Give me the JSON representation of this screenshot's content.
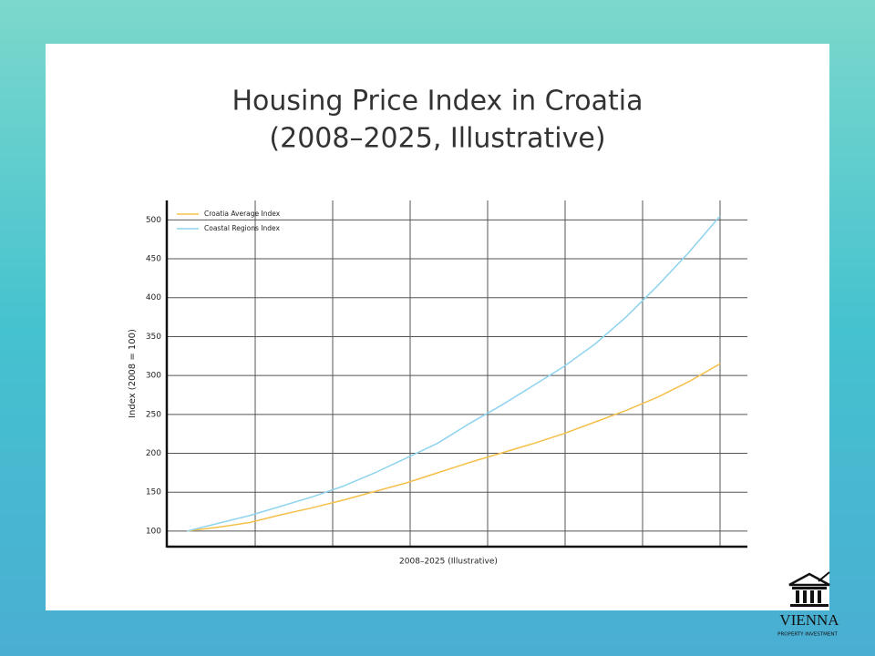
{
  "chart_data": {
    "type": "line",
    "title": "Housing Price Index in Croatia",
    "subtitle": "(2008–2025, Illustrative)",
    "x_label": "2008–2025 (Illustrative)",
    "y_label": "Index (2008 = 100)",
    "categories": [
      null,
      null,
      null,
      null,
      null,
      null,
      null,
      null,
      null,
      null,
      null,
      null,
      null,
      null,
      null,
      null,
      null,
      null
    ],
    "series": [
      {
        "name": "Croatia Average Index",
        "color": "#f5c04a",
        "values": [
          100,
          105,
          111,
          121,
          130,
          140,
          151,
          162,
          175,
          188,
          200,
          212,
          225,
          240,
          255,
          272,
          292,
          315
        ]
      },
      {
        "name": "Coastal Regions Index",
        "color": "#8fd3ee",
        "values": [
          100,
          110,
          120,
          132,
          144,
          158,
          175,
          194,
          213,
          238,
          261,
          286,
          311,
          340,
          375,
          415,
          458,
          505
        ]
      }
    ],
    "ylim": [
      80,
      525
    ],
    "yticks": [
      100,
      150,
      200,
      250,
      300,
      350,
      400,
      450,
      500
    ],
    "grid": true,
    "legend": "top-left"
  },
  "brand": {
    "name": "VIENNA",
    "tagline": "PROPERTY INVESTMENT"
  }
}
